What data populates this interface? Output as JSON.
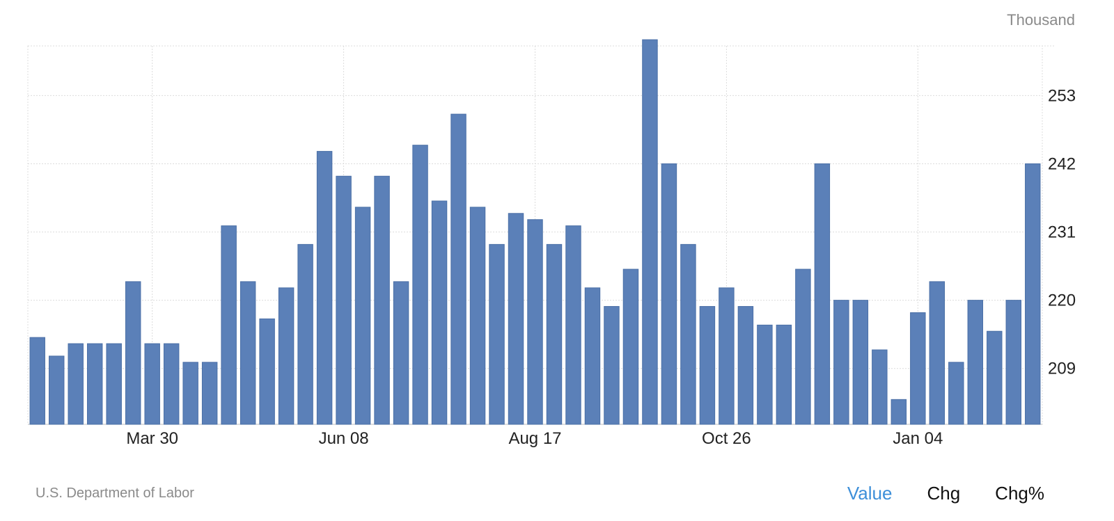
{
  "unit_label": "Thousand",
  "source": "U.S. Department of Labor",
  "tabs": [
    {
      "label": "Value",
      "active": true
    },
    {
      "label": "Chg",
      "active": false
    },
    {
      "label": "Chg%",
      "active": false
    }
  ],
  "colors": {
    "bar": "#5b80b8",
    "bar_border": "#4a6fa6",
    "grid": "#dcdcdc",
    "active_tab": "#3d8fd9"
  },
  "chart_data": {
    "type": "bar",
    "title": "",
    "xlabel": "",
    "ylabel": "Thousand",
    "ylim": [
      200,
      261
    ],
    "yticks": [
      209,
      220,
      231,
      242,
      253
    ],
    "x_tick_labels": [
      {
        "index": 6,
        "label": "Mar 30"
      },
      {
        "index": 16,
        "label": "Jun 08"
      },
      {
        "index": 26,
        "label": "Aug 17"
      },
      {
        "index": 36,
        "label": "Oct 26"
      },
      {
        "index": 46,
        "label": "Jan 04"
      }
    ],
    "grid": true,
    "values": [
      214,
      211,
      213,
      213,
      213,
      223,
      213,
      213,
      210,
      210,
      232,
      223,
      217,
      222,
      229,
      244,
      240,
      235,
      240,
      223,
      245,
      236,
      250,
      235,
      229,
      234,
      233,
      229,
      232,
      222,
      219,
      225,
      262,
      242,
      229,
      219,
      222,
      219,
      216,
      216,
      225,
      242,
      220,
      220,
      212,
      204,
      218,
      223,
      210,
      220,
      215,
      220,
      242
    ]
  }
}
